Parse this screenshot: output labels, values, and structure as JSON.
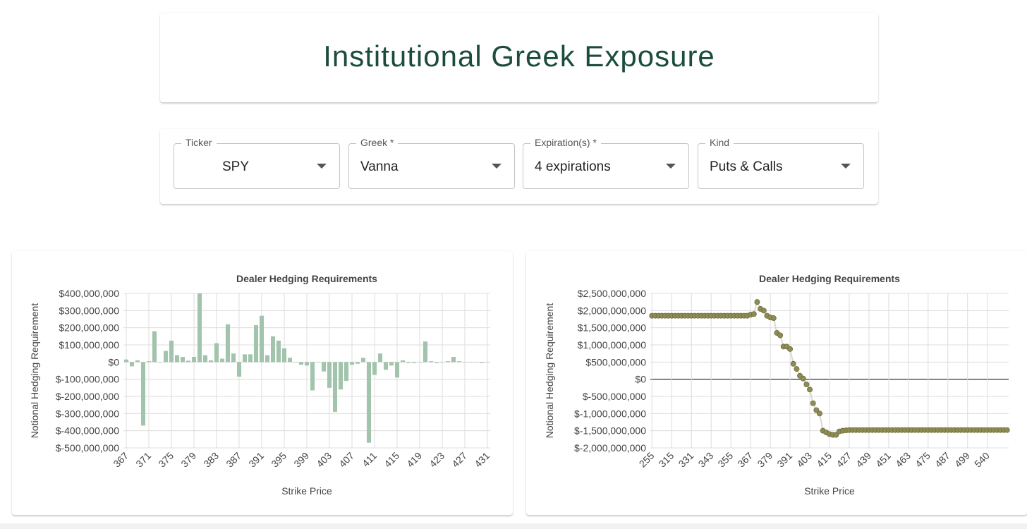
{
  "header": {
    "title": "Institutional Greek Exposure"
  },
  "controls": [
    {
      "label": "Ticker",
      "value": "SPY"
    },
    {
      "label": "Greek *",
      "value": "Vanna"
    },
    {
      "label": "Expiration(s) *",
      "value": "4 expirations"
    },
    {
      "label": "Kind",
      "value": "Puts & Calls"
    }
  ],
  "chart_data": [
    {
      "type": "bar",
      "title": "Dealer Hedging Requirements",
      "x_label": "Strike Price",
      "y_label": "Notional Hedging Requirement",
      "color": "#a3c4ac",
      "grid": true,
      "categories": [
        "367",
        null,
        null,
        null,
        "371",
        null,
        null,
        null,
        "375",
        null,
        null,
        null,
        "379",
        null,
        null,
        null,
        "383",
        null,
        null,
        null,
        "387",
        null,
        null,
        null,
        "391",
        null,
        null,
        null,
        "395",
        null,
        null,
        null,
        "399",
        null,
        null,
        null,
        "403",
        null,
        null,
        null,
        "407",
        null,
        null,
        null,
        "411",
        null,
        null,
        null,
        "415",
        null,
        null,
        null,
        "419",
        null,
        null,
        null,
        "423",
        null,
        null,
        null,
        "427",
        null,
        null,
        null,
        "431"
      ],
      "values": [
        15000000,
        -25000000,
        10000000,
        -370000000,
        5000000,
        180000000,
        0,
        65000000,
        125000000,
        40000000,
        30000000,
        8000000,
        30000000,
        400000000,
        40000000,
        10000000,
        110000000,
        20000000,
        220000000,
        50000000,
        -85000000,
        45000000,
        45000000,
        215000000,
        270000000,
        40000000,
        150000000,
        125000000,
        80000000,
        25000000,
        0,
        -15000000,
        -20000000,
        -165000000,
        0,
        -55000000,
        -150000000,
        -290000000,
        -160000000,
        -110000000,
        -15000000,
        -10000000,
        25000000,
        -470000000,
        -75000000,
        50000000,
        -45000000,
        -20000000,
        -90000000,
        10000000,
        -5000000,
        -5000000,
        0,
        120000000,
        5000000,
        -5000000,
        0,
        5000000,
        30000000,
        5000000,
        0,
        0,
        0,
        -5000000,
        0
      ],
      "ylim": [
        -500000000,
        400000000
      ],
      "yticks": [
        {
          "value": 400000000,
          "label": "$400,000,000"
        },
        {
          "value": 300000000,
          "label": "$300,000,000"
        },
        {
          "value": 200000000,
          "label": "$200,000,000"
        },
        {
          "value": 100000000,
          "label": "$100,000,000"
        },
        {
          "value": 0,
          "label": "$0"
        },
        {
          "value": -100000000,
          "label": "$-100,000,000"
        },
        {
          "value": -200000000,
          "label": "$-200,000,000"
        },
        {
          "value": -300000000,
          "label": "$-300,000,000"
        },
        {
          "value": -400000000,
          "label": "$-400,000,000"
        },
        {
          "value": -500000000,
          "label": "$-500,000,000"
        }
      ]
    },
    {
      "type": "line",
      "title": "Dealer Hedging Requirements",
      "x_label": "Strike Price",
      "y_label": "Notional Hedging Requirement",
      "color": "#8e8c55",
      "grid": true,
      "zero_line": true,
      "categories": [
        "255",
        null,
        null,
        null,
        null,
        null,
        "315",
        null,
        null,
        null,
        null,
        null,
        "331",
        null,
        null,
        null,
        null,
        null,
        "343",
        null,
        null,
        null,
        null,
        null,
        "355",
        null,
        null,
        null,
        null,
        null,
        "367",
        null,
        null,
        null,
        null,
        null,
        "379",
        null,
        null,
        null,
        null,
        null,
        "391",
        null,
        null,
        null,
        null,
        null,
        "403",
        null,
        null,
        null,
        null,
        null,
        "415",
        null,
        null,
        null,
        null,
        null,
        "427",
        null,
        null,
        null,
        null,
        null,
        "439",
        null,
        null,
        null,
        null,
        null,
        "451",
        null,
        null,
        null,
        null,
        null,
        "463",
        null,
        null,
        null,
        null,
        null,
        "475",
        null,
        null,
        null,
        null,
        null,
        "487",
        null,
        null,
        null,
        null,
        null,
        "499",
        null,
        null,
        null,
        null,
        null,
        "540",
        null,
        null,
        null,
        null,
        null,
        null
      ],
      "values": [
        1850000000,
        1850000000,
        1850000000,
        1850000000,
        1850000000,
        1850000000,
        1850000000,
        1850000000,
        1850000000,
        1850000000,
        1850000000,
        1850000000,
        1850000000,
        1850000000,
        1850000000,
        1850000000,
        1850000000,
        1850000000,
        1850000000,
        1850000000,
        1850000000,
        1850000000,
        1850000000,
        1850000000,
        1850000000,
        1850000000,
        1850000000,
        1850000000,
        1850000000,
        1850000000,
        1880000000,
        1900000000,
        2250000000,
        2050000000,
        2000000000,
        1850000000,
        1800000000,
        1780000000,
        1350000000,
        1280000000,
        950000000,
        950000000,
        880000000,
        450000000,
        300000000,
        100000000,
        20000000,
        -150000000,
        -300000000,
        -700000000,
        -900000000,
        -1000000000,
        -1500000000,
        -1550000000,
        -1600000000,
        -1620000000,
        -1620000000,
        -1520000000,
        -1500000000,
        -1490000000,
        -1480000000,
        -1480000000,
        -1480000000,
        -1480000000,
        -1480000000,
        -1480000000,
        -1480000000,
        -1480000000,
        -1480000000,
        -1480000000,
        -1480000000,
        -1480000000,
        -1480000000,
        -1480000000,
        -1480000000,
        -1480000000,
        -1480000000,
        -1480000000,
        -1480000000,
        -1480000000,
        -1480000000,
        -1480000000,
        -1480000000,
        -1480000000,
        -1480000000,
        -1480000000,
        -1480000000,
        -1480000000,
        -1480000000,
        -1480000000,
        -1480000000,
        -1480000000,
        -1480000000,
        -1480000000,
        -1480000000,
        -1480000000,
        -1480000000,
        -1480000000,
        -1480000000,
        -1480000000,
        -1480000000,
        -1480000000,
        -1480000000,
        -1480000000,
        -1480000000,
        -1480000000,
        -1480000000,
        -1480000000,
        -1480000000
      ],
      "ylim": [
        -2000000000,
        2500000000
      ],
      "yticks": [
        {
          "value": 2500000000,
          "label": "$2,500,000,000"
        },
        {
          "value": 2000000000,
          "label": "$2,000,000,000"
        },
        {
          "value": 1500000000,
          "label": "$1,500,000,000"
        },
        {
          "value": 1000000000,
          "label": "$1,000,000,000"
        },
        {
          "value": 500000000,
          "label": "$500,000,000"
        },
        {
          "value": 0,
          "label": "$0"
        },
        {
          "value": -500000000,
          "label": "$-500,000,000"
        },
        {
          "value": -1000000000,
          "label": "$-1,000,000,000"
        },
        {
          "value": -1500000000,
          "label": "$-1,500,000,000"
        },
        {
          "value": -2000000000,
          "label": "$-2,000,000,000"
        }
      ]
    }
  ]
}
